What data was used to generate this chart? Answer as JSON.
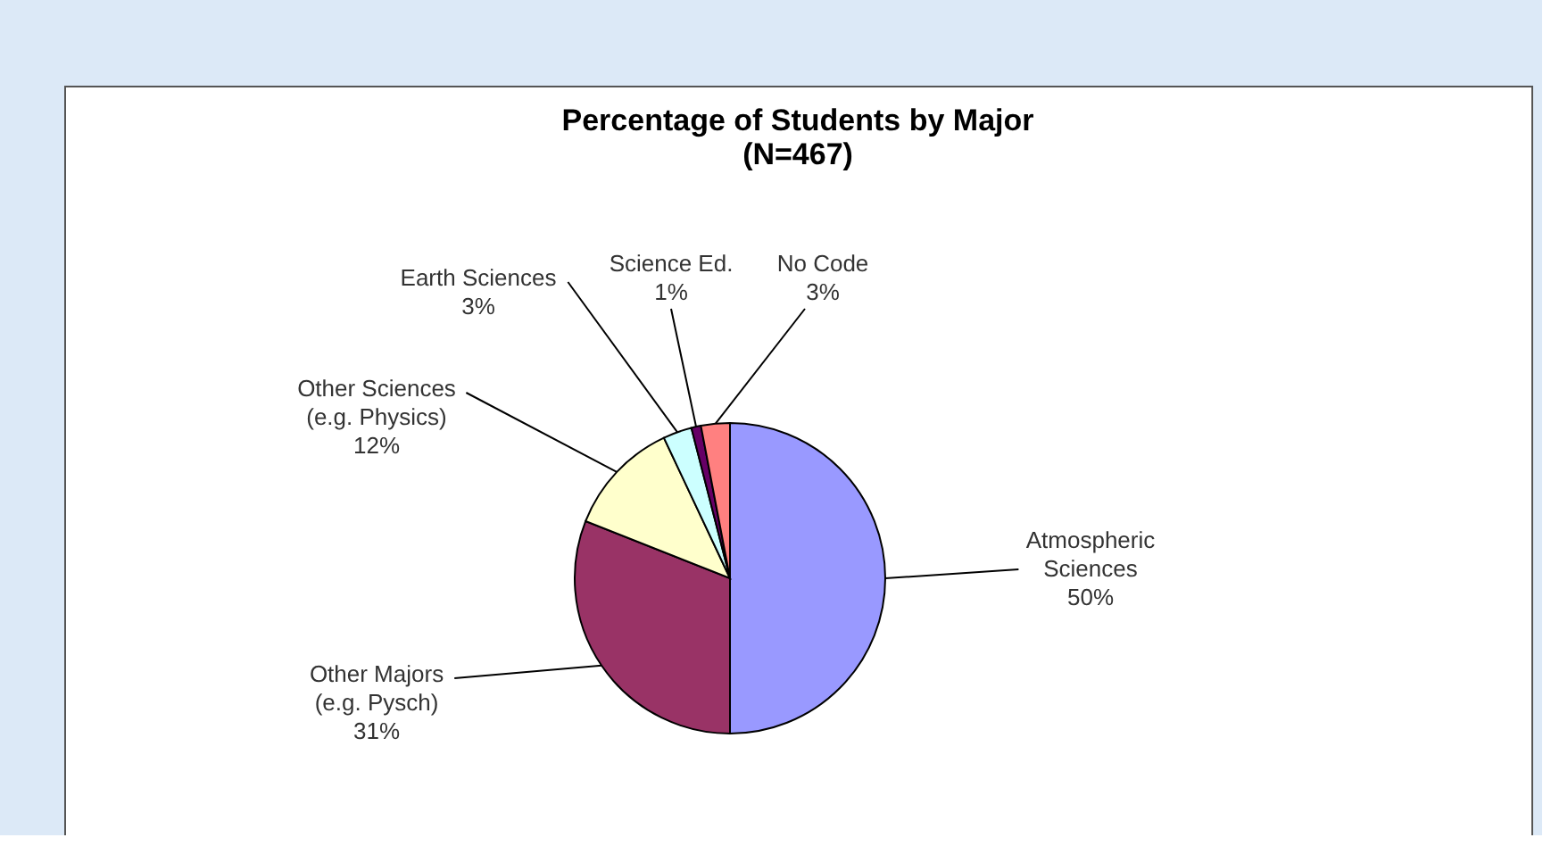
{
  "chart_data": {
    "type": "pie",
    "title": "Percentage of Students by Major (N=467)",
    "categories": [
      "Atmospheric Sciences",
      "Other Majors (e.g. Pysch)",
      "Other Sciences (e.g. Physics)",
      "Earth Sciences",
      "Science Ed.",
      "No Code"
    ],
    "values": [
      50,
      31,
      12,
      3,
      1,
      3
    ],
    "value_labels": [
      "50%",
      "31%",
      "12%",
      "3%",
      "1%",
      "3%"
    ],
    "colors": [
      "#9999ff",
      "#993366",
      "#ffffcc",
      "#ccffff",
      "#660066",
      "#ff8080"
    ],
    "legend": false
  }
}
